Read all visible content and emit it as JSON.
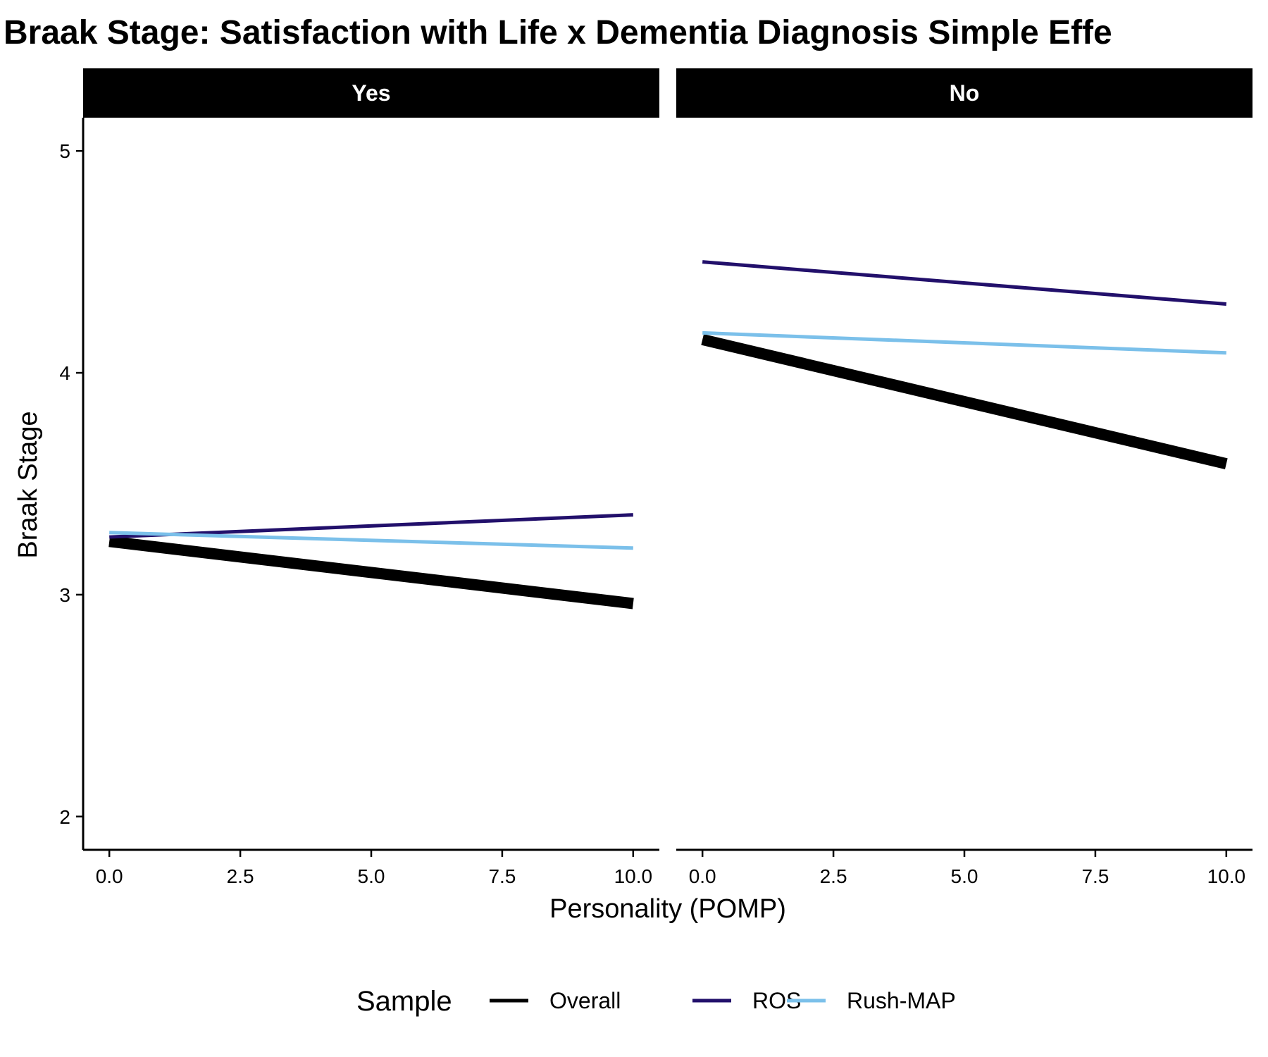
{
  "chart_data": {
    "type": "line",
    "title": "Braak Stage: Satisfaction with Life x Dementia Diagnosis Simple Effe",
    "xlabel": "Personality (POMP)",
    "ylabel": "Braak Stage",
    "xlim": [
      -0.5,
      10.5
    ],
    "ylim": [
      1.85,
      5.15
    ],
    "x_ticks": [
      0,
      2.5,
      5,
      7.5,
      10
    ],
    "x_tick_labels": [
      "0.0",
      "2.5",
      "5.0",
      "7.5",
      "10.0"
    ],
    "y_ticks": [
      2,
      3,
      4,
      5
    ],
    "y_tick_labels": [
      "2",
      "3",
      "4",
      "5"
    ],
    "grid": false,
    "legend": {
      "title": "Sample",
      "placement": "bottom",
      "entries": [
        "Overall",
        "ROS",
        "Rush-MAP"
      ]
    },
    "series_colors": {
      "Overall": "#000000",
      "ROS": "#22106b",
      "Rush-MAP": "#7bc0ea"
    },
    "panels": [
      {
        "facet": "Yes",
        "series": [
          {
            "name": "Overall",
            "x": [
              0,
              10
            ],
            "y": [
              3.24,
              2.96
            ]
          },
          {
            "name": "ROS",
            "x": [
              0,
              10
            ],
            "y": [
              3.26,
              3.36
            ]
          },
          {
            "name": "Rush-MAP",
            "x": [
              0,
              10
            ],
            "y": [
              3.28,
              3.21
            ]
          }
        ]
      },
      {
        "facet": "No",
        "series": [
          {
            "name": "Overall",
            "x": [
              0,
              10
            ],
            "y": [
              4.15,
              3.59
            ]
          },
          {
            "name": "ROS",
            "x": [
              0,
              10
            ],
            "y": [
              4.5,
              4.31
            ]
          },
          {
            "name": "Rush-MAP",
            "x": [
              0,
              10
            ],
            "y": [
              4.18,
              4.09
            ]
          }
        ]
      }
    ]
  }
}
